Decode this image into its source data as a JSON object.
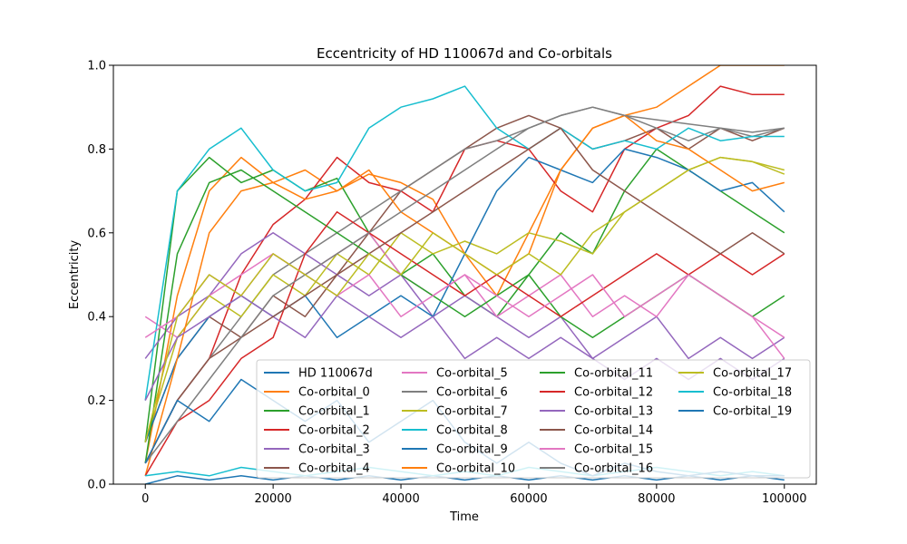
{
  "chart_data": {
    "type": "line",
    "title": "Eccentricity of HD 110067d and Co-orbitals",
    "xlabel": "Time",
    "ylabel": "Eccentricity",
    "xlim": [
      -5000,
      105000
    ],
    "ylim": [
      0.0,
      1.0
    ],
    "xticks": [
      0,
      20000,
      40000,
      60000,
      80000,
      100000
    ],
    "xtick_labels": [
      "0",
      "20000",
      "40000",
      "60000",
      "80000",
      "100000"
    ],
    "yticks": [
      0.0,
      0.2,
      0.4,
      0.6,
      0.8,
      1.0
    ],
    "ytick_labels": [
      "0.0",
      "0.2",
      "0.4",
      "0.6",
      "0.8",
      "1.0"
    ],
    "grid": false,
    "legend_position": "lower-right",
    "legend_columns": 4,
    "x": [
      0,
      5000,
      10000,
      15000,
      20000,
      25000,
      30000,
      35000,
      40000,
      45000,
      50000,
      55000,
      60000,
      65000,
      70000,
      75000,
      80000,
      85000,
      90000,
      95000,
      100000
    ],
    "series": [
      {
        "name": "HD 110067d",
        "color": "#1f77b4",
        "values": [
          0.0,
          0.02,
          0.01,
          0.02,
          0.01,
          0.02,
          0.01,
          0.02,
          0.01,
          0.02,
          0.01,
          0.02,
          0.01,
          0.02,
          0.01,
          0.02,
          0.01,
          0.02,
          0.01,
          0.02,
          0.01
        ]
      },
      {
        "name": "Co-orbital_0",
        "color": "#ff7f0e",
        "values": [
          0.05,
          0.45,
          0.7,
          0.78,
          0.72,
          0.75,
          0.7,
          0.74,
          0.72,
          0.68,
          0.55,
          0.45,
          0.6,
          0.75,
          0.85,
          0.88,
          0.9,
          0.95,
          1.0,
          1.0,
          1.0
        ]
      },
      {
        "name": "Co-orbital_1",
        "color": "#2ca02c",
        "values": [
          0.1,
          0.7,
          0.78,
          0.72,
          0.75,
          0.7,
          0.73,
          0.6,
          0.5,
          0.55,
          0.45,
          0.4,
          0.5,
          0.6,
          0.55,
          0.7,
          0.8,
          0.75,
          0.7,
          0.65,
          0.6
        ]
      },
      {
        "name": "Co-orbital_2",
        "color": "#d62728",
        "values": [
          0.05,
          0.2,
          0.3,
          0.5,
          0.62,
          0.68,
          0.78,
          0.72,
          0.7,
          0.65,
          0.8,
          0.82,
          0.8,
          0.7,
          0.65,
          0.8,
          0.85,
          0.88,
          0.95,
          0.93,
          0.93
        ]
      },
      {
        "name": "Co-orbital_3",
        "color": "#9467bd",
        "values": [
          0.3,
          0.4,
          0.45,
          0.55,
          0.6,
          0.55,
          0.5,
          0.45,
          0.5,
          0.4,
          0.45,
          0.4,
          0.35,
          0.4,
          0.3,
          0.35,
          0.4,
          0.3,
          0.35,
          0.3,
          0.35
        ]
      },
      {
        "name": "Co-orbital_4",
        "color": "#8c564b",
        "values": [
          0.1,
          0.3,
          0.4,
          0.35,
          0.45,
          0.4,
          0.5,
          0.6,
          0.7,
          0.75,
          0.8,
          0.85,
          0.88,
          0.85,
          0.8,
          0.82,
          0.85,
          0.8,
          0.85,
          0.82,
          0.85
        ]
      },
      {
        "name": "Co-orbital_5",
        "color": "#e377c2",
        "values": [
          0.4,
          0.35,
          0.45,
          0.5,
          0.55,
          0.5,
          0.55,
          0.6,
          0.5,
          0.45,
          0.5,
          0.4,
          0.45,
          0.5,
          0.4,
          0.45,
          0.4,
          0.5,
          0.45,
          0.4,
          0.35
        ]
      },
      {
        "name": "Co-orbital_6",
        "color": "#7f7f7f",
        "values": [
          0.05,
          0.2,
          0.3,
          0.4,
          0.5,
          0.55,
          0.6,
          0.65,
          0.7,
          0.75,
          0.8,
          0.82,
          0.85,
          0.88,
          0.9,
          0.88,
          0.85,
          0.82,
          0.85,
          0.83,
          0.85
        ]
      },
      {
        "name": "Co-orbital_7",
        "color": "#bcbd22",
        "values": [
          0.1,
          0.35,
          0.45,
          0.4,
          0.5,
          0.45,
          0.55,
          0.5,
          0.6,
          0.55,
          0.58,
          0.55,
          0.6,
          0.58,
          0.55,
          0.65,
          0.7,
          0.75,
          0.78,
          0.77,
          0.75
        ]
      },
      {
        "name": "Co-orbital_8",
        "color": "#17becf",
        "values": [
          0.2,
          0.7,
          0.8,
          0.85,
          0.75,
          0.7,
          0.72,
          0.85,
          0.9,
          0.92,
          0.95,
          0.85,
          0.8,
          0.85,
          0.8,
          0.82,
          0.8,
          0.85,
          0.82,
          0.83,
          0.83
        ]
      },
      {
        "name": "Co-orbital_9",
        "color": "#1f77b4",
        "values": [
          0.1,
          0.3,
          0.4,
          0.45,
          0.4,
          0.45,
          0.35,
          0.4,
          0.45,
          0.4,
          0.55,
          0.7,
          0.78,
          0.75,
          0.72,
          0.8,
          0.78,
          0.75,
          0.7,
          0.72,
          0.65
        ]
      },
      {
        "name": "Co-orbital_10",
        "color": "#ff7f0e",
        "values": [
          0.02,
          0.3,
          0.6,
          0.7,
          0.72,
          0.68,
          0.7,
          0.75,
          0.65,
          0.6,
          0.55,
          0.5,
          0.55,
          0.75,
          0.85,
          0.88,
          0.82,
          0.8,
          0.75,
          0.7,
          0.72
        ]
      },
      {
        "name": "Co-orbital_11",
        "color": "#2ca02c",
        "values": [
          0.05,
          0.55,
          0.72,
          0.75,
          0.7,
          0.65,
          0.6,
          0.55,
          0.5,
          0.45,
          0.4,
          0.45,
          0.5,
          0.4,
          0.35,
          0.4,
          0.45,
          0.5,
          0.45,
          0.4,
          0.45
        ]
      },
      {
        "name": "Co-orbital_12",
        "color": "#d62728",
        "values": [
          0.02,
          0.15,
          0.2,
          0.3,
          0.35,
          0.55,
          0.65,
          0.6,
          0.55,
          0.5,
          0.45,
          0.5,
          0.45,
          0.4,
          0.45,
          0.5,
          0.55,
          0.5,
          0.55,
          0.5,
          0.55
        ]
      },
      {
        "name": "Co-orbital_13",
        "color": "#9467bd",
        "values": [
          0.2,
          0.35,
          0.4,
          0.45,
          0.4,
          0.35,
          0.45,
          0.4,
          0.35,
          0.4,
          0.3,
          0.35,
          0.3,
          0.35,
          0.3,
          0.25,
          0.3,
          0.25,
          0.3,
          0.25,
          0.3
        ]
      },
      {
        "name": "Co-orbital_14",
        "color": "#8c564b",
        "values": [
          0.05,
          0.2,
          0.3,
          0.35,
          0.4,
          0.45,
          0.5,
          0.55,
          0.6,
          0.65,
          0.7,
          0.75,
          0.8,
          0.85,
          0.75,
          0.7,
          0.65,
          0.6,
          0.55,
          0.6,
          0.55
        ]
      },
      {
        "name": "Co-orbital_15",
        "color": "#e377c2",
        "values": [
          0.35,
          0.4,
          0.5,
          0.45,
          0.55,
          0.5,
          0.45,
          0.5,
          0.4,
          0.45,
          0.5,
          0.45,
          0.4,
          0.45,
          0.5,
          0.4,
          0.45,
          0.5,
          0.45,
          0.4,
          0.3
        ]
      },
      {
        "name": "Co-orbital_16",
        "color": "#7f7f7f",
        "values": [
          0.05,
          0.15,
          0.25,
          0.35,
          0.45,
          0.5,
          0.55,
          0.6,
          0.65,
          0.7,
          0.75,
          0.8,
          0.85,
          0.88,
          0.9,
          0.88,
          0.87,
          0.86,
          0.85,
          0.84,
          0.85
        ]
      },
      {
        "name": "Co-orbital_17",
        "color": "#bcbd22",
        "values": [
          0.1,
          0.4,
          0.5,
          0.45,
          0.55,
          0.5,
          0.45,
          0.55,
          0.5,
          0.6,
          0.55,
          0.5,
          0.55,
          0.5,
          0.6,
          0.65,
          0.7,
          0.75,
          0.78,
          0.77,
          0.74
        ]
      },
      {
        "name": "Co-orbital_18",
        "color": "#17becf",
        "values": [
          0.02,
          0.03,
          0.02,
          0.04,
          0.03,
          0.02,
          0.03,
          0.04,
          0.03,
          0.02,
          0.03,
          0.02,
          0.04,
          0.03,
          0.02,
          0.03,
          0.04,
          0.03,
          0.02,
          0.03,
          0.02
        ]
      },
      {
        "name": "Co-orbital_19",
        "color": "#1f77b4",
        "values": [
          0.05,
          0.2,
          0.15,
          0.25,
          0.2,
          0.15,
          0.2,
          0.1,
          0.15,
          0.2,
          0.1,
          0.05,
          0.1,
          0.05,
          0.02,
          0.05,
          0.03,
          0.02,
          0.03,
          0.02,
          0.02
        ]
      }
    ]
  }
}
